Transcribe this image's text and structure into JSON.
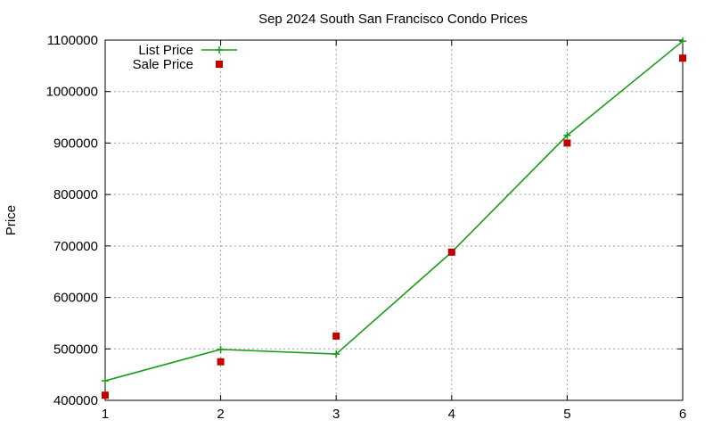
{
  "chart_data": {
    "type": "line",
    "title": "Sep 2024 South San Francisco Condo Prices",
    "xlabel": "",
    "ylabel": "Price",
    "xlim": [
      1,
      6
    ],
    "ylim": [
      400000,
      1100000
    ],
    "x_ticks": [
      "1",
      "2",
      "3",
      "4",
      "5",
      "6"
    ],
    "y_ticks": [
      "400000",
      "500000",
      "600000",
      "700000",
      "800000",
      "900000",
      "1000000",
      "1100000"
    ],
    "grid": true,
    "legend_position": "top-left",
    "series": [
      {
        "name": "List Price",
        "style": "line-with-plus-markers",
        "color": "#1a9e1a",
        "x": [
          1,
          2,
          3,
          4,
          5,
          6
        ],
        "values": [
          438000,
          499000,
          490000,
          688000,
          915000,
          1098000
        ]
      },
      {
        "name": "Sale Price",
        "style": "square-markers",
        "color": "#c00000",
        "x": [
          1,
          2,
          3,
          4,
          5,
          6
        ],
        "values": [
          410000,
          475000,
          525000,
          688000,
          900000,
          1065000
        ]
      }
    ]
  }
}
